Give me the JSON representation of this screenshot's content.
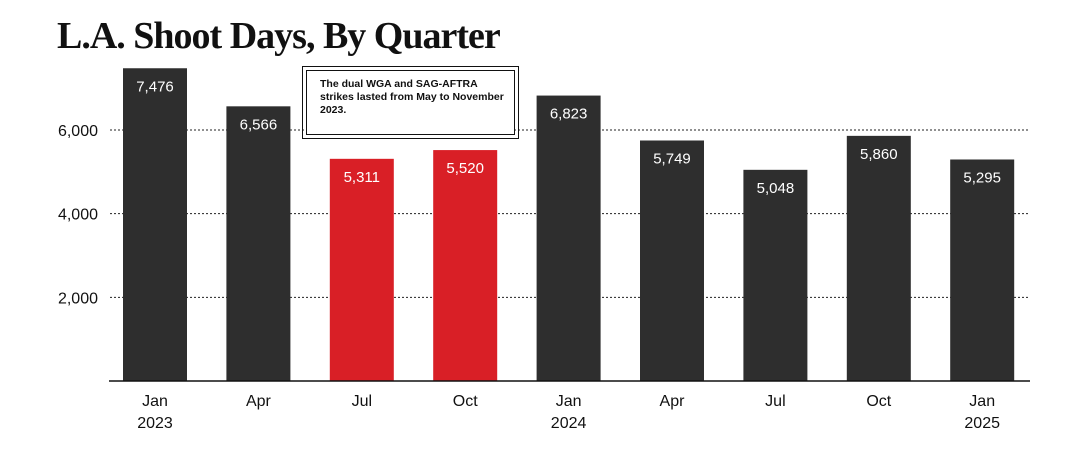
{
  "chart_data": {
    "type": "bar",
    "title": "L.A. Shoot Days, By Quarter",
    "xlabel": "",
    "ylabel": "",
    "ylim": [
      0,
      8000
    ],
    "yticks": [
      2000,
      4000,
      6000
    ],
    "ytick_labels": [
      "2,000",
      "4,000",
      "6,000"
    ],
    "grid": true,
    "categories": [
      [
        "Jan",
        "2023"
      ],
      [
        "Apr",
        ""
      ],
      [
        "Jul",
        ""
      ],
      [
        "Oct",
        ""
      ],
      [
        "Jan",
        "2024"
      ],
      [
        "Apr",
        ""
      ],
      [
        "Jul",
        ""
      ],
      [
        "Oct",
        ""
      ],
      [
        "Jan",
        "2025"
      ]
    ],
    "values": [
      7476,
      6566,
      5311,
      5520,
      6823,
      5749,
      5048,
      5860,
      5295
    ],
    "value_labels": [
      "7,476",
      "6,566",
      "5,311",
      "5,520",
      "6,823",
      "5,749",
      "5,048",
      "5,860",
      "5,295"
    ],
    "highlight": [
      false,
      false,
      true,
      true,
      false,
      false,
      false,
      false,
      false
    ],
    "colors": {
      "default": "#2e2e2e",
      "highlight": "#d91f26"
    },
    "annotation": "The dual WGA and SAG-AFTRA strikes lasted from May to November 2023."
  }
}
